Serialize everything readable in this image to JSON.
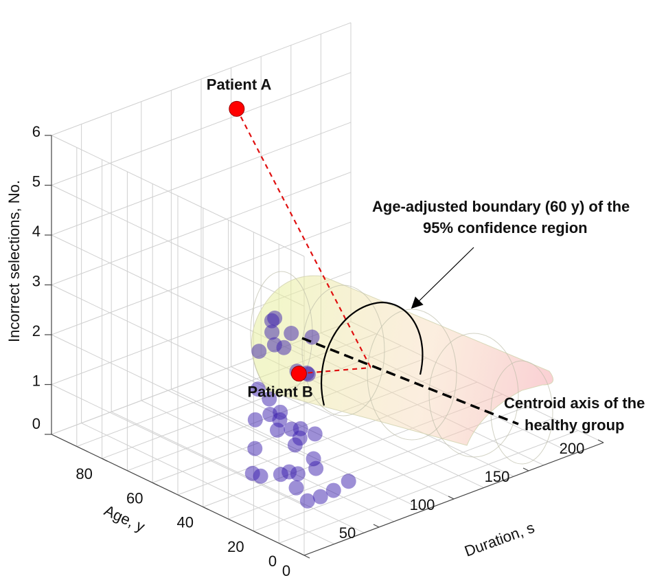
{
  "chart_data": {
    "type": "scatter",
    "axes": {
      "x": {
        "label": "Duration, s",
        "ticks": [
          0,
          50,
          100,
          150,
          200
        ],
        "tick_labels": [
          "0",
          "50",
          "100",
          "150",
          "200"
        ],
        "range": [
          0,
          200
        ]
      },
      "y": {
        "label": "Age, y",
        "ticks": [
          0,
          20,
          40,
          60,
          80
        ],
        "tick_labels": [
          "0",
          "20",
          "40",
          "60",
          "80"
        ],
        "range": [
          0,
          100
        ]
      },
      "z": {
        "label": "Incorrect selections, No.",
        "ticks": [
          0,
          1,
          2,
          3,
          4,
          5,
          6
        ],
        "tick_labels": [
          "0",
          "1",
          "2",
          "3",
          "4",
          "5",
          "6"
        ],
        "range": [
          0,
          6
        ]
      }
    },
    "grid": true,
    "series": [
      {
        "color": "#3b1fae",
        "points": [
          {
            "x": 40,
            "y": 20,
            "z": 1.0
          },
          {
            "x": 45,
            "y": 22,
            "z": 0.7
          },
          {
            "x": 35,
            "y": 30,
            "z": 0.5
          },
          {
            "x": 50,
            "y": 18,
            "z": 0.3
          },
          {
            "x": 42,
            "y": 28,
            "z": 0.2
          },
          {
            "x": 38,
            "y": 25,
            "z": 0.6
          },
          {
            "x": 30,
            "y": 35,
            "z": 0.4
          },
          {
            "x": 55,
            "y": 15,
            "z": 0.5
          },
          {
            "x": 48,
            "y": 22,
            "z": 0.1
          },
          {
            "x": 33,
            "y": 40,
            "z": 0.3
          },
          {
            "x": 44,
            "y": 32,
            "z": 0.4
          },
          {
            "x": 36,
            "y": 20,
            "z": 0.2
          },
          {
            "x": 60,
            "y": 45,
            "z": 1.1
          },
          {
            "x": 62,
            "y": 55,
            "z": 1.3
          },
          {
            "x": 70,
            "y": 55,
            "z": 0.7
          },
          {
            "x": 75,
            "y": 48,
            "z": 0.2
          },
          {
            "x": 78,
            "y": 60,
            "z": 0.8
          },
          {
            "x": 65,
            "y": 58,
            "z": 0.0
          },
          {
            "x": 72,
            "y": 62,
            "z": 0.4
          },
          {
            "x": 80,
            "y": 58,
            "z": 0.2
          },
          {
            "x": 85,
            "y": 60,
            "z": 0.3
          },
          {
            "x": 82,
            "y": 50,
            "z": 0.4
          },
          {
            "x": 86,
            "y": 56,
            "z": 0.2
          },
          {
            "x": 90,
            "y": 55,
            "z": 0.0
          },
          {
            "x": 95,
            "y": 52,
            "z": 0.1
          },
          {
            "x": 88,
            "y": 70,
            "z": 1.4
          },
          {
            "x": 95,
            "y": 68,
            "z": 1.5
          },
          {
            "x": 100,
            "y": 72,
            "z": 1.6
          },
          {
            "x": 105,
            "y": 75,
            "z": 1.7
          },
          {
            "x": 108,
            "y": 72,
            "z": 1.2
          },
          {
            "x": 104,
            "y": 60,
            "z": 1.0
          },
          {
            "x": 110,
            "y": 68,
            "z": 0.8
          },
          {
            "x": 115,
            "y": 65,
            "z": 1.5
          },
          {
            "x": 118,
            "y": 75,
            "z": 1.3
          },
          {
            "x": 112,
            "y": 78,
            "z": 1.6
          },
          {
            "x": 120,
            "y": 70,
            "z": 0.6
          }
        ]
      }
    ],
    "highlighted_points": [
      {
        "label": "Patient A",
        "x": 90,
        "y": 80,
        "z": 6.0,
        "color": "#ff0000"
      },
      {
        "label": "Patient B",
        "x": 140,
        "y": 85,
        "z": 0.0,
        "color": "#ff0000"
      }
    ],
    "annotations": [
      {
        "text_lines": [
          "Age-adjusted boundary (60 y) of the",
          "95% confidence region"
        ]
      },
      {
        "text_lines": [
          "Centroid axis of the",
          "healthy group"
        ]
      }
    ]
  }
}
